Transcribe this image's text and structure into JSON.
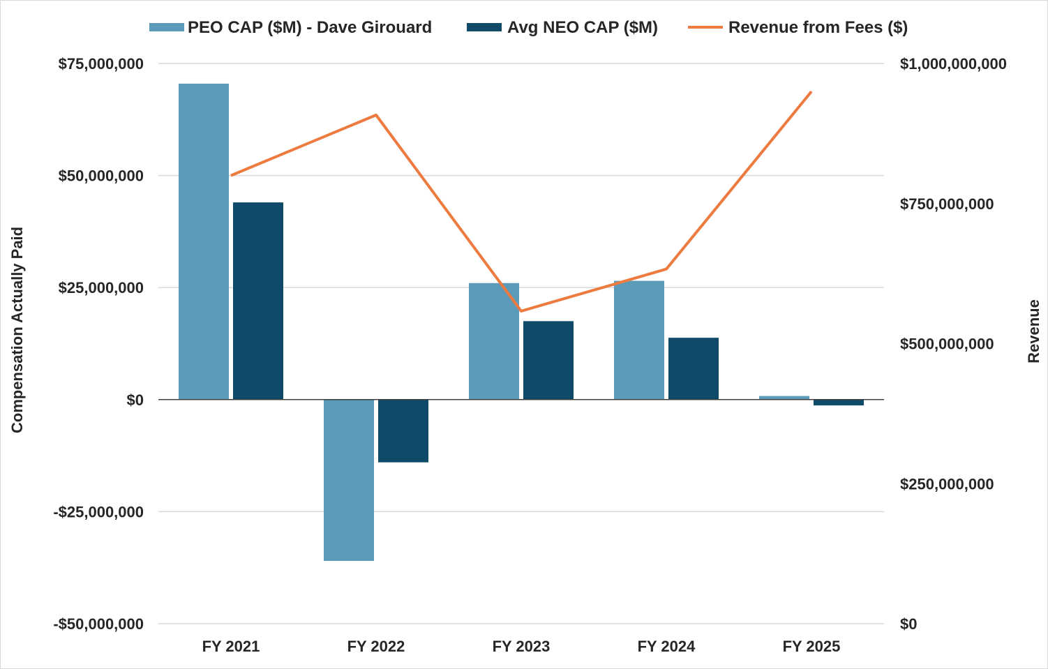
{
  "chart_data": {
    "type": "bar",
    "categories": [
      "FY 2021",
      "FY 2022",
      "FY 2023",
      "FY 2024",
      "FY 2025"
    ],
    "series": [
      {
        "name": "PEO CAP ($M) - Dave Girouard",
        "type": "bar",
        "axis": "left",
        "color": "#5b9ab8",
        "values": [
          70500000,
          -36000000,
          26000000,
          26500000,
          800000
        ]
      },
      {
        "name": "Avg NEO CAP ($M)",
        "type": "bar",
        "axis": "left",
        "color": "#0f4a68",
        "values": [
          44000000,
          -14000000,
          17500000,
          13800000,
          -1300000
        ]
      },
      {
        "name": "Revenue from Fees ($)",
        "type": "line",
        "axis": "right",
        "color": "#ed7a3f",
        "values": [
          800000000,
          908000000,
          558000000,
          633000000,
          950000000
        ]
      }
    ],
    "y_left": {
      "label": "Compensation Actually Paid",
      "ylim": [
        -50000000,
        75000000
      ],
      "ticks": [
        75000000,
        50000000,
        25000000,
        0,
        -25000000,
        -50000000
      ],
      "tick_labels": [
        "$75,000,000",
        "$50,000,000",
        "$25,000,000",
        "$0",
        "-$25,000,000",
        "-$50,000,000"
      ]
    },
    "y_right": {
      "label": "Revenue",
      "ylim": [
        0,
        1000000000
      ],
      "ticks": [
        1000000000,
        750000000,
        500000000,
        250000000,
        0
      ],
      "tick_labels": [
        "$1,000,000,000",
        "$750,000,000",
        "$500,000,000",
        "$250,000,000",
        "$0"
      ]
    },
    "xlabel": "",
    "grid": true,
    "legend_position": "top"
  }
}
